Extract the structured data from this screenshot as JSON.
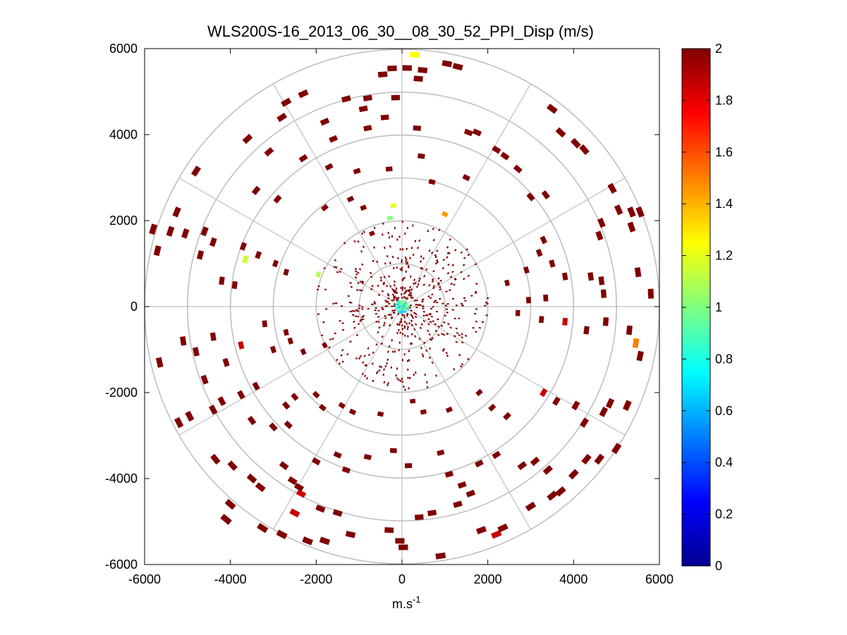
{
  "chart_data": {
    "type": "scatter",
    "subtype": "ppi-polar",
    "title": "WLS200S-16_2013_06_30__08_30_52_PPI_Disp (m/s)",
    "xlabel": "m.s",
    "xlabel_superscript": "-1",
    "ylabel": "",
    "xlim": [
      -6000,
      6000
    ],
    "ylim": [
      -6000,
      6000
    ],
    "x_ticks": [
      -6000,
      -4000,
      -2000,
      0,
      2000,
      4000,
      6000
    ],
    "y_ticks": [
      6000,
      4000,
      2000,
      0,
      -2000,
      -4000,
      -6000
    ],
    "x_tick_labels": [
      "-6000",
      "-4000",
      "-2000",
      "0",
      "2000",
      "4000",
      "6000"
    ],
    "y_tick_labels": [
      "6000",
      "4000",
      "2000",
      "0",
      "-2000",
      "-4000",
      "-6000"
    ],
    "polar_grid": {
      "rings": [
        1000,
        2000,
        3000,
        4000,
        5000,
        6000
      ],
      "spoke_angles_deg": [
        0,
        30,
        60,
        90,
        120,
        150,
        180,
        210,
        240,
        270,
        300,
        330
      ]
    },
    "colorbar": {
      "min": 0,
      "max": 2,
      "ticks": [
        2,
        1.8,
        1.6,
        1.4,
        1.2,
        1,
        0.8,
        0.6,
        0.4,
        0.2,
        0
      ],
      "tick_labels": [
        "2",
        "1.8",
        "1.6",
        "1.4",
        "1.2",
        "1",
        "0.8",
        "0.6",
        "0.4",
        "0.2",
        "0"
      ],
      "colormap": "jet"
    },
    "colors": {
      "jet": [
        "#00008f",
        "#0000ff",
        "#0080ff",
        "#00ffff",
        "#80ff80",
        "#ffff00",
        "#ff8000",
        "#ff0000",
        "#800000"
      ],
      "grid": "#c0c0c0",
      "axis": "#000000"
    },
    "points": [
      [
        -450,
        5400,
        2
      ],
      [
        -230,
        5540,
        2
      ],
      [
        120,
        5550,
        2
      ],
      [
        480,
        5500,
        2
      ],
      [
        1050,
        5650,
        2
      ],
      [
        1300,
        5580,
        2
      ],
      [
        -2700,
        4750,
        2
      ],
      [
        -2300,
        4950,
        2
      ],
      [
        -1300,
        4830,
        2
      ],
      [
        -800,
        4850,
        2
      ],
      [
        -150,
        4860,
        2
      ],
      [
        380,
        5300,
        2
      ],
      [
        -1800,
        4300,
        2
      ],
      [
        -900,
        4600,
        2
      ],
      [
        -400,
        4400,
        2
      ],
      [
        -1600,
        3900,
        2
      ],
      [
        -800,
        4150,
        2
      ],
      [
        350,
        4150,
        2
      ],
      [
        1550,
        4050,
        2
      ],
      [
        1750,
        4050,
        2
      ],
      [
        2200,
        3650,
        2
      ],
      [
        2400,
        3500,
        2
      ],
      [
        2700,
        3200,
        2
      ],
      [
        3500,
        4600,
        2
      ],
      [
        4050,
        3800,
        2
      ],
      [
        4250,
        3650,
        2
      ],
      [
        -3600,
        3900,
        2
      ],
      [
        -3100,
        3600,
        2
      ],
      [
        -2300,
        3450,
        2
      ],
      [
        -1700,
        3250,
        2
      ],
      [
        -1050,
        3150,
        2
      ],
      [
        -300,
        3200,
        2
      ],
      [
        450,
        3500,
        2
      ],
      [
        1500,
        3000,
        2
      ],
      [
        3000,
        2550,
        2
      ],
      [
        3350,
        2600,
        2
      ],
      [
        -4800,
        3150,
        2
      ],
      [
        -3400,
        2700,
        2
      ],
      [
        -2900,
        2500,
        2
      ],
      [
        -1800,
        2300,
        2
      ],
      [
        -1200,
        2500,
        2
      ],
      [
        -900,
        2300,
        2
      ],
      [
        700,
        2900,
        2
      ],
      [
        -200,
        2350,
        1.2
      ],
      [
        -280,
        2060,
        1.0
      ],
      [
        1000,
        2150,
        1.45
      ],
      [
        4900,
        2750,
        2
      ],
      [
        5050,
        2250,
        2
      ],
      [
        5350,
        2200,
        2
      ],
      [
        5550,
        2200,
        2
      ],
      [
        5350,
        1850,
        2
      ],
      [
        4650,
        1950,
        2
      ],
      [
        4600,
        1650,
        2
      ],
      [
        3300,
        1550,
        2
      ],
      [
        -5250,
        2200,
        2
      ],
      [
        -5400,
        1750,
        2
      ],
      [
        -5800,
        1800,
        2
      ],
      [
        -5700,
        1300,
        2
      ],
      [
        -5050,
        1700,
        2
      ],
      [
        -4600,
        1750,
        2
      ],
      [
        -4400,
        1500,
        2
      ],
      [
        -4700,
        1200,
        2
      ],
      [
        -3700,
        1400,
        2
      ],
      [
        -3650,
        1100,
        1.15
      ],
      [
        -3350,
        1200,
        2
      ],
      [
        -2950,
        1000,
        2
      ],
      [
        -2700,
        800,
        2
      ],
      [
        -1950,
        750,
        1.1
      ],
      [
        -3900,
        500,
        2
      ],
      [
        -4200,
        600,
        2
      ],
      [
        3200,
        1250,
        2
      ],
      [
        3500,
        1000,
        2
      ],
      [
        3800,
        700,
        2
      ],
      [
        4400,
        700,
        2
      ],
      [
        4650,
        600,
        2
      ],
      [
        4700,
        300,
        2
      ],
      [
        5500,
        800,
        2
      ],
      [
        5800,
        300,
        2
      ],
      [
        2900,
        850,
        2
      ],
      [
        2450,
        550,
        2
      ],
      [
        2950,
        150,
        2
      ],
      [
        3350,
        200,
        2
      ],
      [
        2700,
        -150,
        2
      ],
      [
        3250,
        -300,
        2
      ],
      [
        3800,
        -350,
        1.85
      ],
      [
        4300,
        -550,
        2
      ],
      [
        4750,
        -350,
        2
      ],
      [
        5300,
        -550,
        2
      ],
      [
        5450,
        -850,
        1.5
      ],
      [
        5550,
        -1150,
        2
      ],
      [
        -3750,
        -900,
        1.85
      ],
      [
        -3200,
        -400,
        2
      ],
      [
        -2700,
        -600,
        2
      ],
      [
        -2600,
        -800,
        2
      ],
      [
        -4400,
        -700,
        2
      ],
      [
        -5100,
        -800,
        2
      ],
      [
        -5650,
        -1300,
        2
      ],
      [
        -4800,
        -1050,
        2
      ],
      [
        -4100,
        -1300,
        2
      ],
      [
        -3000,
        -1000,
        2
      ],
      [
        -2300,
        -1050,
        2
      ],
      [
        -1800,
        -900,
        2
      ],
      [
        -4600,
        -1700,
        2
      ],
      [
        -4200,
        -2200,
        2
      ],
      [
        -3750,
        -2050,
        2
      ],
      [
        -3400,
        -1850,
        2
      ],
      [
        -2700,
        -2300,
        2
      ],
      [
        -2500,
        -2100,
        2
      ],
      [
        -5200,
        -2700,
        2
      ],
      [
        -4950,
        -2550,
        2
      ],
      [
        -4400,
        -2400,
        2
      ],
      [
        -3500,
        -2650,
        2
      ],
      [
        -3000,
        -2800,
        2
      ],
      [
        -2650,
        -2750,
        2
      ],
      [
        -2000,
        -2050,
        2
      ],
      [
        -1850,
        -2350,
        2
      ],
      [
        -1400,
        -2300,
        2
      ],
      [
        -1150,
        -2450,
        2
      ],
      [
        -500,
        -2500,
        2
      ],
      [
        250,
        -2200,
        2
      ],
      [
        500,
        -2450,
        2
      ],
      [
        1100,
        -2400,
        2
      ],
      [
        1800,
        -2000,
        2
      ],
      [
        2100,
        -2350,
        2
      ],
      [
        2450,
        -2550,
        2
      ],
      [
        3300,
        -2000,
        1.85
      ],
      [
        3600,
        -2200,
        2
      ],
      [
        4050,
        -2300,
        2
      ],
      [
        4250,
        -2700,
        2
      ],
      [
        4700,
        -2450,
        2
      ],
      [
        4850,
        -2250,
        2
      ],
      [
        5250,
        -2300,
        2
      ],
      [
        -4350,
        -3550,
        2
      ],
      [
        -3950,
        -3700,
        2
      ],
      [
        -3500,
        -4000,
        2
      ],
      [
        -3300,
        -4200,
        2
      ],
      [
        -2750,
        -3700,
        2
      ],
      [
        -2550,
        -4050,
        2
      ],
      [
        -2000,
        -3600,
        2
      ],
      [
        -1500,
        -3450,
        2
      ],
      [
        -1300,
        -3800,
        2
      ],
      [
        -800,
        -3500,
        2
      ],
      [
        -200,
        -3350,
        2
      ],
      [
        150,
        -3700,
        2
      ],
      [
        900,
        -3400,
        2
      ],
      [
        1100,
        -3900,
        2
      ],
      [
        1400,
        -4150,
        2
      ],
      [
        1800,
        -3650,
        2
      ],
      [
        2200,
        -3450,
        2
      ],
      [
        2800,
        -3700,
        2
      ],
      [
        3100,
        -3600,
        2
      ],
      [
        3400,
        -3800,
        2
      ],
      [
        4000,
        -3900,
        2
      ],
      [
        4300,
        -3550,
        2
      ],
      [
        4600,
        -3550,
        2
      ],
      [
        5000,
        -3300,
        2
      ],
      [
        -4100,
        -4950,
        2
      ],
      [
        -3250,
        -5150,
        2
      ],
      [
        -2350,
        -4350,
        1.85
      ],
      [
        -2400,
        -4200,
        2
      ],
      [
        -2500,
        -4800,
        1.85
      ],
      [
        -1900,
        -4700,
        2
      ],
      [
        -1500,
        -4800,
        2
      ],
      [
        -1200,
        -5300,
        2
      ],
      [
        -300,
        -5200,
        2
      ],
      [
        -50,
        -5450,
        2
      ],
      [
        30,
        -5600,
        2
      ],
      [
        400,
        -4900,
        2
      ],
      [
        700,
        -4800,
        2
      ],
      [
        1300,
        -4600,
        2
      ],
      [
        1600,
        -4350,
        2
      ],
      [
        1850,
        -5200,
        2
      ],
      [
        2200,
        -5300,
        1.85
      ],
      [
        2350,
        -5150,
        2
      ],
      [
        3000,
        -4650,
        2
      ],
      [
        3500,
        -4400,
        2
      ],
      [
        3700,
        -4300,
        2
      ],
      [
        -4000,
        -4600,
        2
      ],
      [
        -2800,
        -5300,
        2
      ],
      [
        -2200,
        -5450,
        2
      ],
      [
        -1800,
        -5450,
        2
      ],
      [
        900,
        -5800,
        2
      ],
      [
        300,
        5860,
        1.25
      ],
      [
        3700,
        4050,
        2
      ],
      [
        -2800,
        4400,
        2
      ],
      [
        -700,
        1700,
        2
      ]
    ]
  }
}
